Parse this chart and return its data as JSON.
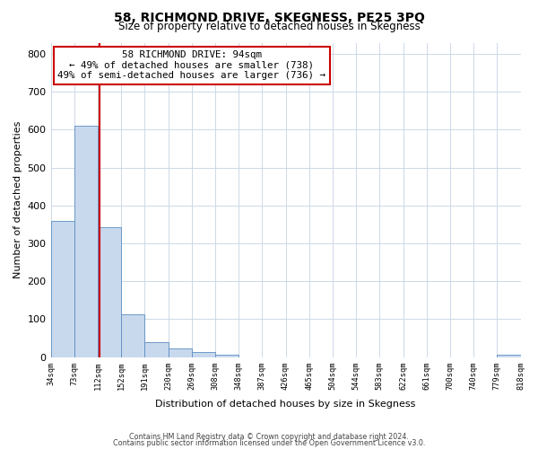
{
  "title": "58, RICHMOND DRIVE, SKEGNESS, PE25 3PQ",
  "subtitle": "Size of property relative to detached houses in Skegness",
  "xlabel": "Distribution of detached houses by size in Skegness",
  "ylabel": "Number of detached properties",
  "bar_values": [
    360,
    610,
    343,
    113,
    40,
    22,
    13,
    5,
    0,
    0,
    0,
    0,
    0,
    0,
    0,
    0,
    0,
    0,
    0,
    5
  ],
  "bar_labels": [
    "34sqm",
    "73sqm",
    "112sqm",
    "152sqm",
    "191sqm",
    "230sqm",
    "269sqm",
    "308sqm",
    "348sqm",
    "387sqm",
    "426sqm",
    "465sqm",
    "504sqm",
    "544sqm",
    "583sqm",
    "622sqm",
    "661sqm",
    "700sqm",
    "740sqm",
    "779sqm",
    "818sqm"
  ],
  "bar_color": "#c8d9ee",
  "bar_edge_color": "#5b8dc0",
  "vline_color": "#cc0000",
  "vline_pos": 1.57,
  "annotation_title": "58 RICHMOND DRIVE: 94sqm",
  "annotation_line1": "← 49% of detached houses are smaller (738)",
  "annotation_line2": "49% of semi-detached houses are larger (736) →",
  "annotation_box_color": "#ffffff",
  "annotation_box_edge": "#cc0000",
  "ylim": [
    0,
    830
  ],
  "yticks": [
    0,
    100,
    200,
    300,
    400,
    500,
    600,
    700,
    800
  ],
  "footer1": "Contains HM Land Registry data © Crown copyright and database right 2024.",
  "footer2": "Contains public sector information licensed under the Open Government Licence v3.0.",
  "bg_color": "#ffffff",
  "grid_color": "#cdd8e8"
}
